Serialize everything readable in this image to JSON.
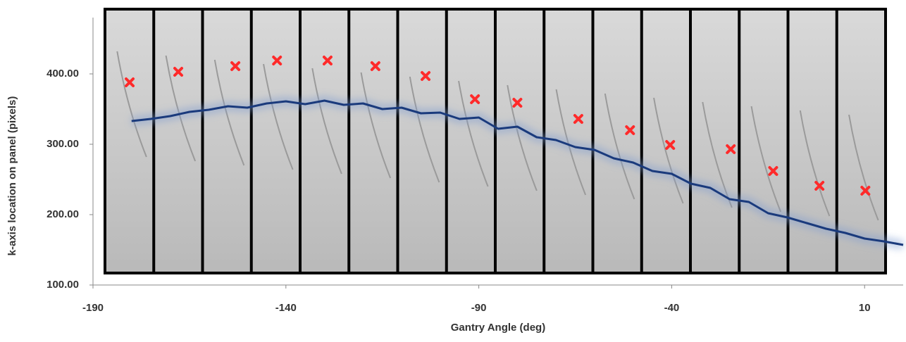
{
  "chart_data": {
    "type": "combo",
    "xlabel": "Gantry Angle (deg)",
    "ylabel": "k-axis location on panel (pixels)",
    "xlim": [
      -190,
      20
    ],
    "xticks": [
      -190,
      -140,
      -90,
      -40,
      10
    ],
    "ylim": [
      100,
      490
    ],
    "yticks": [
      {
        "value": 100,
        "label": "100.00"
      },
      {
        "value": 200,
        "label": "200.00"
      },
      {
        "value": 300,
        "label": "300.00"
      },
      {
        "value": 400,
        "label": "400.00"
      }
    ],
    "series": [
      {
        "type": "line",
        "color": "#1a3a7c",
        "x": [
          -180,
          -175,
          -170,
          -165,
          -160,
          -155,
          -150,
          -145,
          -140,
          -135,
          -130,
          -125,
          -120,
          -115,
          -110,
          -105,
          -100,
          -95,
          -90,
          -85,
          -80,
          -75,
          -70,
          -65,
          -60,
          -55,
          -50,
          -45,
          -40,
          -35,
          -30,
          -25,
          -20,
          -15,
          -10,
          -5,
          0,
          5,
          10,
          15,
          20
        ],
        "values": [
          333,
          336,
          340,
          346,
          349,
          354,
          352,
          358,
          361,
          357,
          362,
          356,
          358,
          350,
          352,
          344,
          345,
          336,
          338,
          322,
          325,
          310,
          306,
          296,
          292,
          280,
          274,
          262,
          258,
          244,
          238,
          222,
          218,
          202,
          196,
          188,
          180,
          174,
          166,
          162,
          157
        ]
      },
      {
        "type": "scatter",
        "color": "#ff2a2a",
        "x": [
          -180.5,
          -167.9,
          -153.1,
          -142.3,
          -129.2,
          -116.8,
          -103.8,
          -91,
          -80,
          -64.2,
          -50.8,
          -40.4,
          -24.7,
          -13.7,
          -1.7,
          10.2
        ],
        "values": [
          388,
          403,
          411,
          419,
          419,
          411,
          397,
          364,
          359,
          336,
          320,
          299,
          293,
          262,
          241,
          234
        ]
      }
    ]
  }
}
